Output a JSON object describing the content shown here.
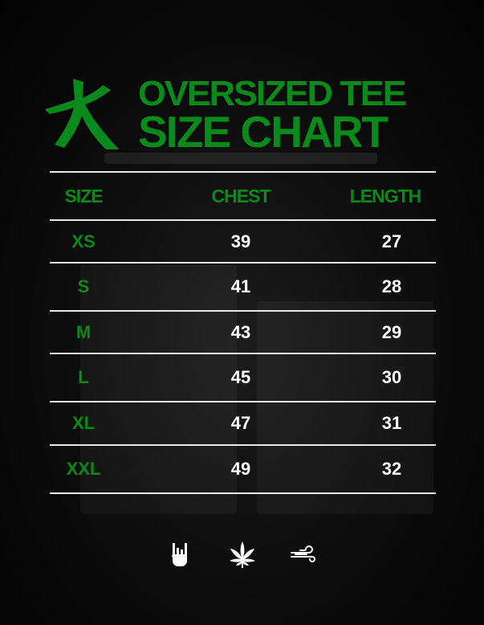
{
  "title": {
    "line1": "OVERSIZED TEE",
    "line2": "SIZE CHART"
  },
  "logo": {
    "glyph": "大",
    "color": "#0b8a1c"
  },
  "accent_color": "#0b8a1c",
  "table": {
    "headers": [
      "SIZE",
      "CHEST",
      "LENGTH"
    ],
    "rows": [
      {
        "size": "XS",
        "chest": "39",
        "length": "27"
      },
      {
        "size": "S",
        "chest": "41",
        "length": "28"
      },
      {
        "size": "M",
        "chest": "43",
        "length": "29"
      },
      {
        "size": "L",
        "chest": "45",
        "length": "30"
      },
      {
        "size": "XL",
        "chest": "47",
        "length": "31"
      },
      {
        "size": "XXL",
        "chest": "49",
        "length": "32"
      }
    ]
  },
  "footer_icons": [
    "rock-hand-icon",
    "cannabis-leaf-icon",
    "wind-icon"
  ]
}
